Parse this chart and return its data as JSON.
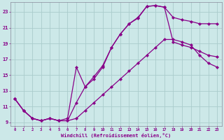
{
  "xlabel": "Windchill (Refroidissement éolien,°C)",
  "bg_color": "#cce8e8",
  "grid_color": "#aacccc",
  "line_color": "#880088",
  "xlim": [
    -0.5,
    23.5
  ],
  "ylim": [
    8.5,
    24.2
  ],
  "xticks": [
    0,
    1,
    2,
    3,
    4,
    5,
    6,
    7,
    8,
    9,
    10,
    11,
    12,
    13,
    14,
    15,
    16,
    17,
    18,
    19,
    20,
    21,
    22,
    23
  ],
  "yticks": [
    9,
    11,
    13,
    15,
    17,
    19,
    21,
    23
  ],
  "line1_x": [
    0,
    1,
    2,
    3,
    4,
    5,
    6,
    7,
    8,
    9,
    10,
    11,
    12,
    13,
    14,
    15,
    16,
    17,
    18,
    19,
    20,
    21,
    22,
    23
  ],
  "line1_y": [
    12.0,
    10.5,
    9.5,
    9.2,
    9.5,
    9.2,
    9.2,
    11.5,
    13.5,
    14.8,
    16.2,
    18.5,
    20.2,
    21.5,
    22.3,
    23.7,
    23.8,
    23.6,
    22.3,
    22.0,
    21.8,
    21.5,
    21.5,
    21.5
  ],
  "line2_x": [
    0,
    1,
    2,
    3,
    4,
    5,
    6,
    7,
    8,
    9,
    10,
    11,
    12,
    13,
    14,
    15,
    16,
    17,
    18,
    19,
    20,
    21,
    22,
    23
  ],
  "line2_y": [
    12.0,
    10.5,
    9.5,
    9.2,
    9.5,
    9.2,
    9.5,
    16.0,
    13.5,
    14.5,
    16.0,
    18.5,
    20.2,
    21.5,
    22.2,
    23.7,
    23.8,
    23.6,
    19.2,
    18.8,
    18.5,
    18.0,
    17.5,
    17.3
  ],
  "line3_x": [
    0,
    1,
    2,
    3,
    4,
    5,
    6,
    7,
    8,
    9,
    10,
    11,
    12,
    13,
    14,
    15,
    16,
    17,
    18,
    19,
    20,
    21,
    22,
    23
  ],
  "line3_y": [
    12.0,
    10.5,
    9.5,
    9.2,
    9.5,
    9.2,
    9.2,
    9.5,
    10.5,
    11.5,
    12.5,
    13.5,
    14.5,
    15.5,
    16.5,
    17.5,
    18.5,
    19.5,
    19.5,
    19.2,
    18.8,
    17.5,
    16.5,
    16.0
  ]
}
